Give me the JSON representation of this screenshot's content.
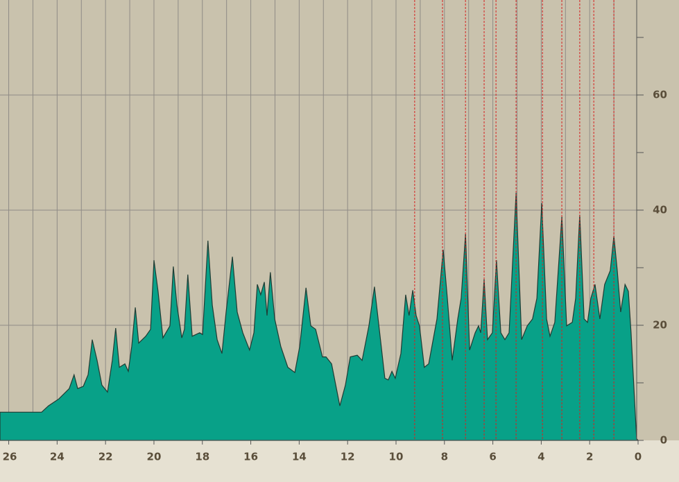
{
  "chart_data": {
    "type": "area",
    "x": [
      26.36,
      24.64,
      24.36,
      23.93,
      23.5,
      23.3,
      23.15,
      22.92,
      22.72,
      22.55,
      22.35,
      22.15,
      21.92,
      21.72,
      21.58,
      21.43,
      21.2,
      21.06,
      20.92,
      20.77,
      20.63,
      20.34,
      20.14,
      20.0,
      19.83,
      19.63,
      19.34,
      19.2,
      19.05,
      18.85,
      18.74,
      18.6,
      18.42,
      18.11,
      17.99,
      17.77,
      17.59,
      17.39,
      17.19,
      17.02,
      16.76,
      16.56,
      16.33,
      16.05,
      15.87,
      15.73,
      15.59,
      15.44,
      15.33,
      15.19,
      15.01,
      14.76,
      14.47,
      14.18,
      13.98,
      13.72,
      13.52,
      13.32,
      13.04,
      12.89,
      12.66,
      12.32,
      12.09,
      11.89,
      11.6,
      11.4,
      11.12,
      10.89,
      10.69,
      10.46,
      10.32,
      10.17,
      10.03,
      9.8,
      9.6,
      9.46,
      9.31,
      9.17,
      9.03,
      8.83,
      8.65,
      8.31,
      8.05,
      7.88,
      7.68,
      7.45,
      7.31,
      7.13,
      6.96,
      6.73,
      6.59,
      6.5,
      6.36,
      6.22,
      6.02,
      5.85,
      5.67,
      5.5,
      5.33,
      5.04,
      4.81,
      4.58,
      4.36,
      4.18,
      3.98,
      3.78,
      3.64,
      3.44,
      3.15,
      2.95,
      2.72,
      2.58,
      2.41,
      2.23,
      2.09,
      1.95,
      1.78,
      1.58,
      1.38,
      1.15,
      1.0,
      0.86,
      0.72,
      0.54,
      0.4,
      0.29,
      0.14,
      0.06,
      0
    ],
    "values": [
      4.9,
      4.9,
      6.0,
      7.2,
      9.0,
      11.4,
      9.0,
      9.4,
      11.4,
      17.5,
      13.9,
      9.6,
      8.4,
      13.9,
      19.5,
      12.7,
      13.3,
      12.0,
      16.3,
      23.1,
      16.9,
      18.1,
      19.3,
      31.3,
      25.9,
      17.8,
      19.9,
      30.2,
      23.5,
      17.8,
      19.3,
      28.8,
      18.1,
      18.7,
      18.4,
      34.7,
      23.5,
      17.5,
      15.1,
      22.3,
      31.9,
      22.3,
      18.7,
      15.7,
      18.7,
      27.1,
      25.3,
      27.5,
      21.7,
      29.2,
      21.1,
      16.3,
      12.7,
      11.8,
      16.3,
      26.5,
      19.9,
      19.3,
      14.5,
      14.5,
      13.3,
      6.0,
      9.6,
      14.5,
      14.8,
      13.9,
      19.9,
      26.7,
      19.3,
      10.8,
      10.5,
      12.0,
      10.8,
      15.1,
      25.3,
      21.7,
      26.1,
      21.7,
      19.9,
      12.7,
      13.3,
      21.1,
      33.1,
      24.7,
      13.9,
      21.1,
      24.7,
      35.9,
      15.7,
      18.7,
      19.9,
      18.7,
      28.0,
      17.5,
      18.7,
      31.3,
      18.7,
      17.5,
      18.7,
      43.0,
      17.5,
      19.9,
      21.1,
      24.7,
      41.2,
      21.1,
      18.1,
      20.5,
      38.9,
      19.9,
      20.5,
      24.7,
      39.2,
      21.1,
      20.5,
      24.7,
      27.1,
      21.1,
      27.1,
      29.5,
      35.5,
      29.5,
      22.3,
      27.1,
      25.9,
      18.7,
      6.6,
      0.3,
      0
    ],
    "color": "#08a188",
    "markers": [
      9.23,
      8.08,
      7.13,
      6.36,
      5.87,
      5.04,
      3.95,
      3.15,
      2.41,
      1.83,
      1.0
    ],
    "xlim": [
      26.36,
      0
    ],
    "xticks": [
      26,
      24,
      22,
      20,
      18,
      16,
      14,
      12,
      10,
      8,
      6,
      4,
      2,
      0
    ],
    "xgrid": [
      26,
      25,
      24,
      23,
      22,
      21,
      20,
      19,
      18,
      17,
      16,
      15,
      14,
      13,
      12,
      11,
      10,
      9,
      8,
      7,
      6,
      5,
      4,
      3,
      2,
      1
    ],
    "ylim": [
      0,
      76.5
    ],
    "yticks": [
      0,
      20,
      40,
      60
    ],
    "yminor": [
      10,
      30,
      50,
      70
    ],
    "grid": true
  }
}
